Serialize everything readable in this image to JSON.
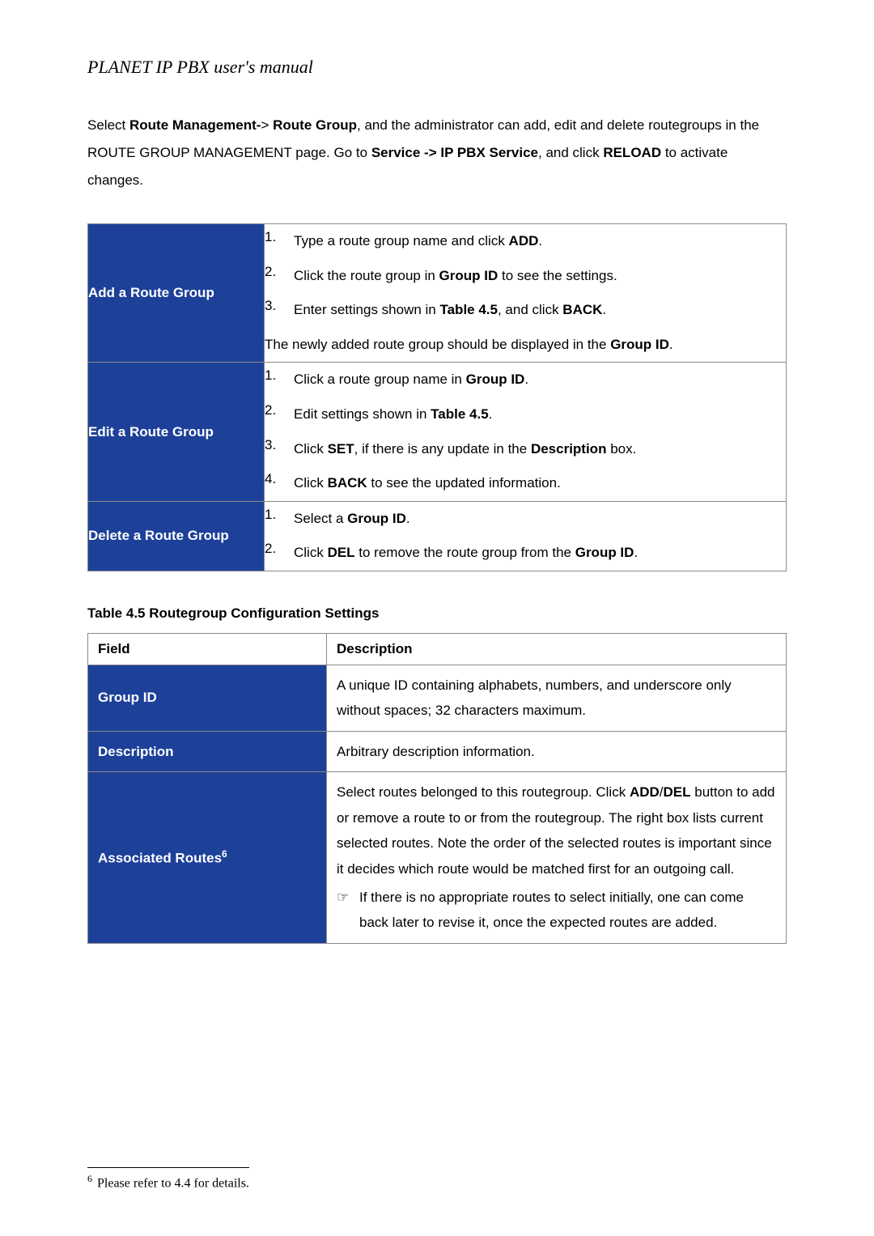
{
  "header": {
    "title": "PLANET IP PBX user's manual"
  },
  "intro": {
    "parts": {
      "p1": "Select ",
      "b1": "Route Management-",
      "p2": "> ",
      "b2": "Route Group",
      "p3": ", and the administrator can add, edit and delete routegroups in the ROUTE GROUP MANAGEMENT page. Go to ",
      "b3": "Service -> IP PBX Service",
      "p4": ", and click ",
      "b4": "RELOAD",
      "p5": " to activate changes."
    }
  },
  "procTable": {
    "rows": [
      {
        "label": "Add a Route Group",
        "steps": [
          {
            "num": "1.",
            "parts": {
              "p1": "Type a route group name and click ",
              "b1": "ADD",
              "p2": "."
            }
          },
          {
            "num": "2.",
            "parts": {
              "p1": "Click the route group in ",
              "b1": "Group ID",
              "p2": " to see the settings."
            }
          },
          {
            "num": "3.",
            "parts": {
              "p1": "Enter settings shown in ",
              "b1": "Table 4.5",
              "p2": ", and click ",
              "b2": "BACK",
              "p3": "."
            }
          }
        ],
        "notes": [
          {
            "parts": {
              "p1": "The newly added route group should be displayed in the ",
              "b1": "Group ID",
              "p2": "."
            }
          }
        ]
      },
      {
        "label": "Edit a Route Group",
        "steps": [
          {
            "num": "1.",
            "parts": {
              "p1": "Click a route group name in ",
              "b1": "Group ID",
              "p2": "."
            }
          },
          {
            "num": "2.",
            "parts": {
              "p1": "Edit settings shown in ",
              "b1": "Table 4.5",
              "p2": "."
            }
          },
          {
            "num": "3.",
            "parts": {
              "p1": "Click ",
              "b1": "SET",
              "p2": ", if there is any update in the ",
              "b2": "Description",
              "p3": " box."
            }
          },
          {
            "num": "4.",
            "parts": {
              "p1": "Click ",
              "b1": "BACK",
              "p2": " to see the updated information."
            }
          }
        ],
        "notes": []
      },
      {
        "label": "Delete a Route Group",
        "steps": [
          {
            "num": "1.",
            "parts": {
              "p1": "Select a ",
              "b1": "Group ID",
              "p2": "."
            }
          },
          {
            "num": "2.",
            "parts": {
              "p1": "Click ",
              "b1": "DEL",
              "p2": " to remove the route group from the ",
              "b2": "Group ID",
              "p3": "."
            }
          }
        ],
        "notes": []
      }
    ]
  },
  "configCaption": "Table 4.5 Routegroup Configuration Settings",
  "configTable": {
    "headers": {
      "field": "Field",
      "desc": "Description"
    },
    "rows": [
      {
        "label": "Group ID",
        "sup": "",
        "desc": {
          "text": "A unique ID containing alphabets, numbers, and underscore only without spaces; 32 characters maximum.",
          "boldParts": {}
        }
      },
      {
        "label": "Description",
        "sup": "",
        "desc": {
          "text": "Arbitrary description information.",
          "boldParts": {}
        }
      },
      {
        "label": "Associated Routes",
        "sup": "6",
        "desc": {
          "main": {
            "p1": "Select routes belonged to this routegroup. Click ",
            "b1": "ADD",
            "p2": "/",
            "b2": "DEL",
            "p3": " button to add or remove a route to or from the routegroup. The right box lists current selected routes. Note the order of the selected routes is important since it decides which route would be matched first for an outgoing call."
          },
          "note": {
            "pointer": "☞",
            "text": "If there is no appropriate routes to select initially, one can come back later to revise it, once the expected routes are added."
          }
        }
      }
    ]
  },
  "footnote": {
    "num": "6",
    "text": "Please refer to 4.4 for details."
  },
  "colors": {
    "labelBg": "#1d4099",
    "labelText": "#ffffff",
    "border": "#8a8a8a",
    "bodyBg": "#ffffff",
    "text": "#000000"
  },
  "typography": {
    "bodyFont": "Arial",
    "titleFont": "Times New Roman",
    "bodySize": 17,
    "titleSize": 22
  }
}
